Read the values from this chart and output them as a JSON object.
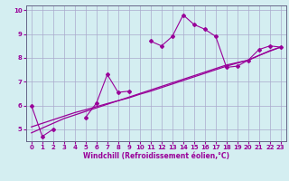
{
  "xlabel": "Windchill (Refroidissement éolien,°C)",
  "x_values": [
    0,
    1,
    2,
    3,
    4,
    5,
    6,
    7,
    8,
    9,
    10,
    11,
    12,
    13,
    14,
    15,
    16,
    17,
    18,
    19,
    20,
    21,
    22,
    23
  ],
  "jagged_line": [
    6.0,
    4.7,
    5.0,
    null,
    null,
    5.5,
    6.1,
    7.3,
    6.55,
    6.6,
    null,
    8.7,
    8.5,
    8.9,
    9.8,
    9.4,
    9.2,
    8.9,
    7.6,
    7.65,
    7.9,
    8.35,
    8.5,
    8.45
  ],
  "smooth_line1": [
    4.85,
    5.05,
    5.25,
    5.45,
    5.6,
    5.75,
    5.9,
    6.05,
    6.2,
    6.35,
    6.5,
    6.65,
    6.8,
    6.95,
    7.1,
    7.25,
    7.4,
    7.55,
    7.7,
    7.8,
    7.9,
    8.1,
    8.3,
    8.45
  ],
  "smooth_line2": [
    5.1,
    5.25,
    5.4,
    5.55,
    5.7,
    5.82,
    5.95,
    6.08,
    6.2,
    6.32,
    6.47,
    6.6,
    6.75,
    6.9,
    7.05,
    7.2,
    7.35,
    7.5,
    7.65,
    7.78,
    7.9,
    8.1,
    8.28,
    8.45
  ],
  "line_color": "#990099",
  "bg_color": "#d4eef1",
  "grid_color": "#aaaacc",
  "ylim": [
    4.5,
    10.2
  ],
  "xlim": [
    -0.5,
    23.5
  ],
  "yticks": [
    5,
    6,
    7,
    8,
    9,
    10
  ],
  "xticks": [
    0,
    1,
    2,
    3,
    4,
    5,
    6,
    7,
    8,
    9,
    10,
    11,
    12,
    13,
    14,
    15,
    16,
    17,
    18,
    19,
    20,
    21,
    22,
    23
  ]
}
